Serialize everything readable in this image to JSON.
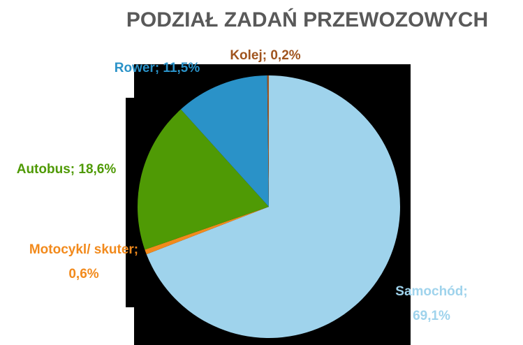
{
  "chart_data": {
    "type": "pie",
    "title": "PODZIAŁ ZADAŃ PRZEWOZOWYCH",
    "values": [
      69.1,
      0.6,
      18.6,
      11.5,
      0.2
    ],
    "value_labels": [
      "Samochód; 69,1%",
      "Motocykl/ skuter; 0,6%",
      "Autobus; 18,6%",
      "Rower; 11,5%",
      "Kolej; 0,2%"
    ],
    "colors": [
      "#9fd3ec",
      "#f28a1c",
      "#4f9a05",
      "#2a92c8",
      "#a0541e"
    ]
  }
}
